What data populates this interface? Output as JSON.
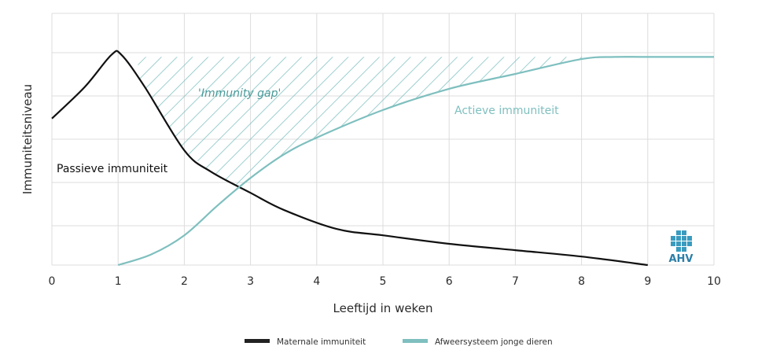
{
  "chart_data": {
    "type": "line",
    "xlabel": "Leeftijd in weken",
    "ylabel": "Immuniteitsniveau",
    "xlim": [
      0,
      10
    ],
    "ylim": [
      0,
      100
    ],
    "x_ticks": [
      0,
      1,
      2,
      3,
      4,
      5,
      6,
      7,
      8,
      9,
      10
    ],
    "grid": "horizontal",
    "legend_position": "bottom",
    "series": [
      {
        "name": "Maternale immuniteit",
        "color": "#111111",
        "x": [
          0,
          0.5,
          0.9,
          1.05,
          1.4,
          2.0,
          2.4,
          3.0,
          3.5,
          4.3,
          5.0,
          6.0,
          7.0,
          8.0,
          9.0
        ],
        "y": [
          69,
          84,
          99,
          99,
          84,
          54,
          44,
          34,
          26,
          17,
          14,
          10,
          7,
          4,
          0
        ]
      },
      {
        "name": "Afweersysteem jonge dieren",
        "color": "#7fbfbf",
        "x": [
          1.0,
          1.5,
          2.0,
          2.5,
          3.0,
          3.5,
          4.0,
          5.0,
          6.0,
          7.0,
          8.0,
          8.5,
          9.0,
          10.0
        ],
        "y": [
          0,
          5,
          14,
          28,
          41,
          52,
          60,
          73,
          83,
          90,
          97,
          98,
          98,
          98
        ]
      }
    ],
    "annotations": {
      "gap_label": "'Immunity gap'",
      "active_label": "Actieve immuniteit",
      "passive_label": "Passieve immuniteit"
    },
    "gap_top_y": 98,
    "logo_text": "AHV"
  }
}
